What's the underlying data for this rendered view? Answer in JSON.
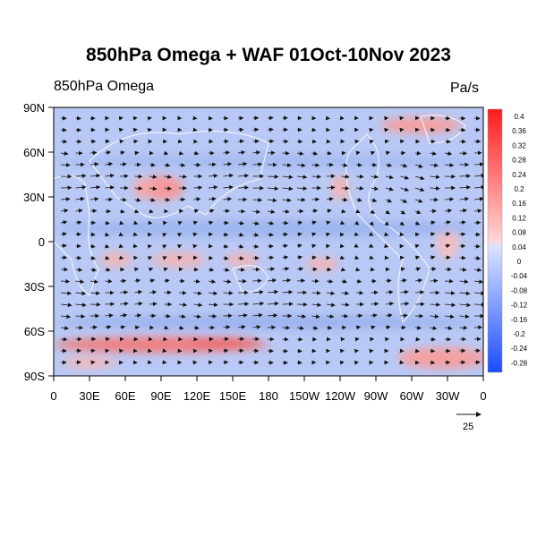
{
  "title": "850hPa Omega + WAF 01Oct-10Nov 2023",
  "left_subtitle": "850hPa Omega",
  "units": "Pa/s",
  "chart_data": {
    "type": "heatmap",
    "variable": "850hPa Omega",
    "overlay": "WAF vectors",
    "lat_ticks": [
      "90N",
      "60N",
      "30N",
      "0",
      "30S",
      "60S",
      "90S"
    ],
    "lon_ticks": [
      "0",
      "30E",
      "60E",
      "90E",
      "120E",
      "150E",
      "180",
      "150W",
      "120W",
      "90W",
      "60W",
      "30W",
      "0"
    ],
    "colorbar": {
      "labels": [
        "0.4",
        "0.36",
        "0.32",
        "0.28",
        "0.24",
        "0.2",
        "0.16",
        "0.12",
        "0.08",
        "0.04",
        "0",
        "-0.04",
        "-0.08",
        "-0.12",
        "-0.16",
        "-0.2",
        "-0.24",
        "-0.28"
      ],
      "min_color": "#1a4cff",
      "max_color": "#ff1a1a"
    },
    "reference_vector": "25"
  }
}
